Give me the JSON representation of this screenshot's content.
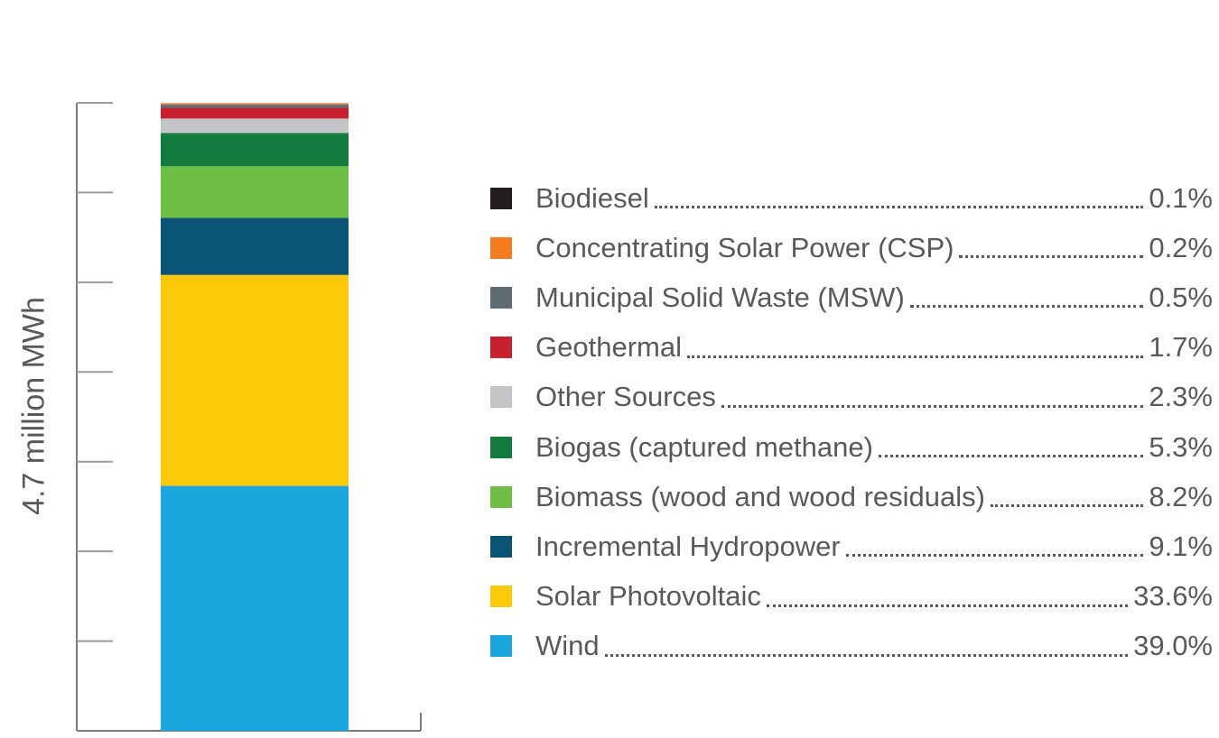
{
  "chart_data": {
    "type": "bar",
    "stacked": true,
    "ylabel": "4.7 million MWh",
    "categories": [
      ""
    ],
    "series": [
      {
        "name": "Wind",
        "values": [
          39.0
        ],
        "color": "#1ba6de"
      },
      {
        "name": "Solar Photovoltaic",
        "values": [
          33.6
        ],
        "color": "#fcc80a"
      },
      {
        "name": "Incremental Hydropower",
        "values": [
          9.1
        ],
        "color": "#0b5475"
      },
      {
        "name": "Biomass (wood and wood residuals)",
        "values": [
          8.2
        ],
        "color": "#6cbe45"
      },
      {
        "name": "Biogas (captured methane)",
        "values": [
          5.3
        ],
        "color": "#137b3d"
      },
      {
        "name": "Other Sources",
        "values": [
          2.3
        ],
        "color": "#c3c4c6"
      },
      {
        "name": "Geothermal",
        "values": [
          1.7
        ],
        "color": "#c8202f"
      },
      {
        "name": "Municipal Solid Waste (MSW)",
        "values": [
          0.5
        ],
        "color": "#5f6b72"
      },
      {
        "name": "Concentrating Solar Power (CSP)",
        "values": [
          0.2
        ],
        "color": "#f47b20"
      },
      {
        "name": "Biodiesel",
        "values": [
          0.1
        ],
        "color": "#231f20"
      }
    ],
    "ylim": [
      0,
      100
    ],
    "grid": false,
    "legend_position": "right"
  },
  "legend": [
    {
      "label": "Biodiesel",
      "value": "0.1%",
      "color": "#231f20"
    },
    {
      "label": "Concentrating Solar Power (CSP)",
      "value": "0.2%",
      "color": "#f47b20"
    },
    {
      "label": "Municipal Solid Waste (MSW)",
      "value": "0.5%",
      "color": "#5f6b72"
    },
    {
      "label": "Geothermal",
      "value": "1.7%",
      "color": "#c8202f"
    },
    {
      "label": "Other Sources",
      "value": "2.3%",
      "color": "#c3c4c6"
    },
    {
      "label": "Biogas (captured methane)",
      "value": "5.3%",
      "color": "#137b3d"
    },
    {
      "label": "Biomass (wood and wood residuals)",
      "value": "8.2%",
      "color": "#6cbe45"
    },
    {
      "label": "Incremental Hydropower",
      "value": "9.1%",
      "color": "#0b5475"
    },
    {
      "label": "Solar Photovoltaic",
      "value": "33.6%",
      "color": "#fcc80a"
    },
    {
      "label": "Wind",
      "value": "39.0%",
      "color": "#1ba6de"
    }
  ]
}
